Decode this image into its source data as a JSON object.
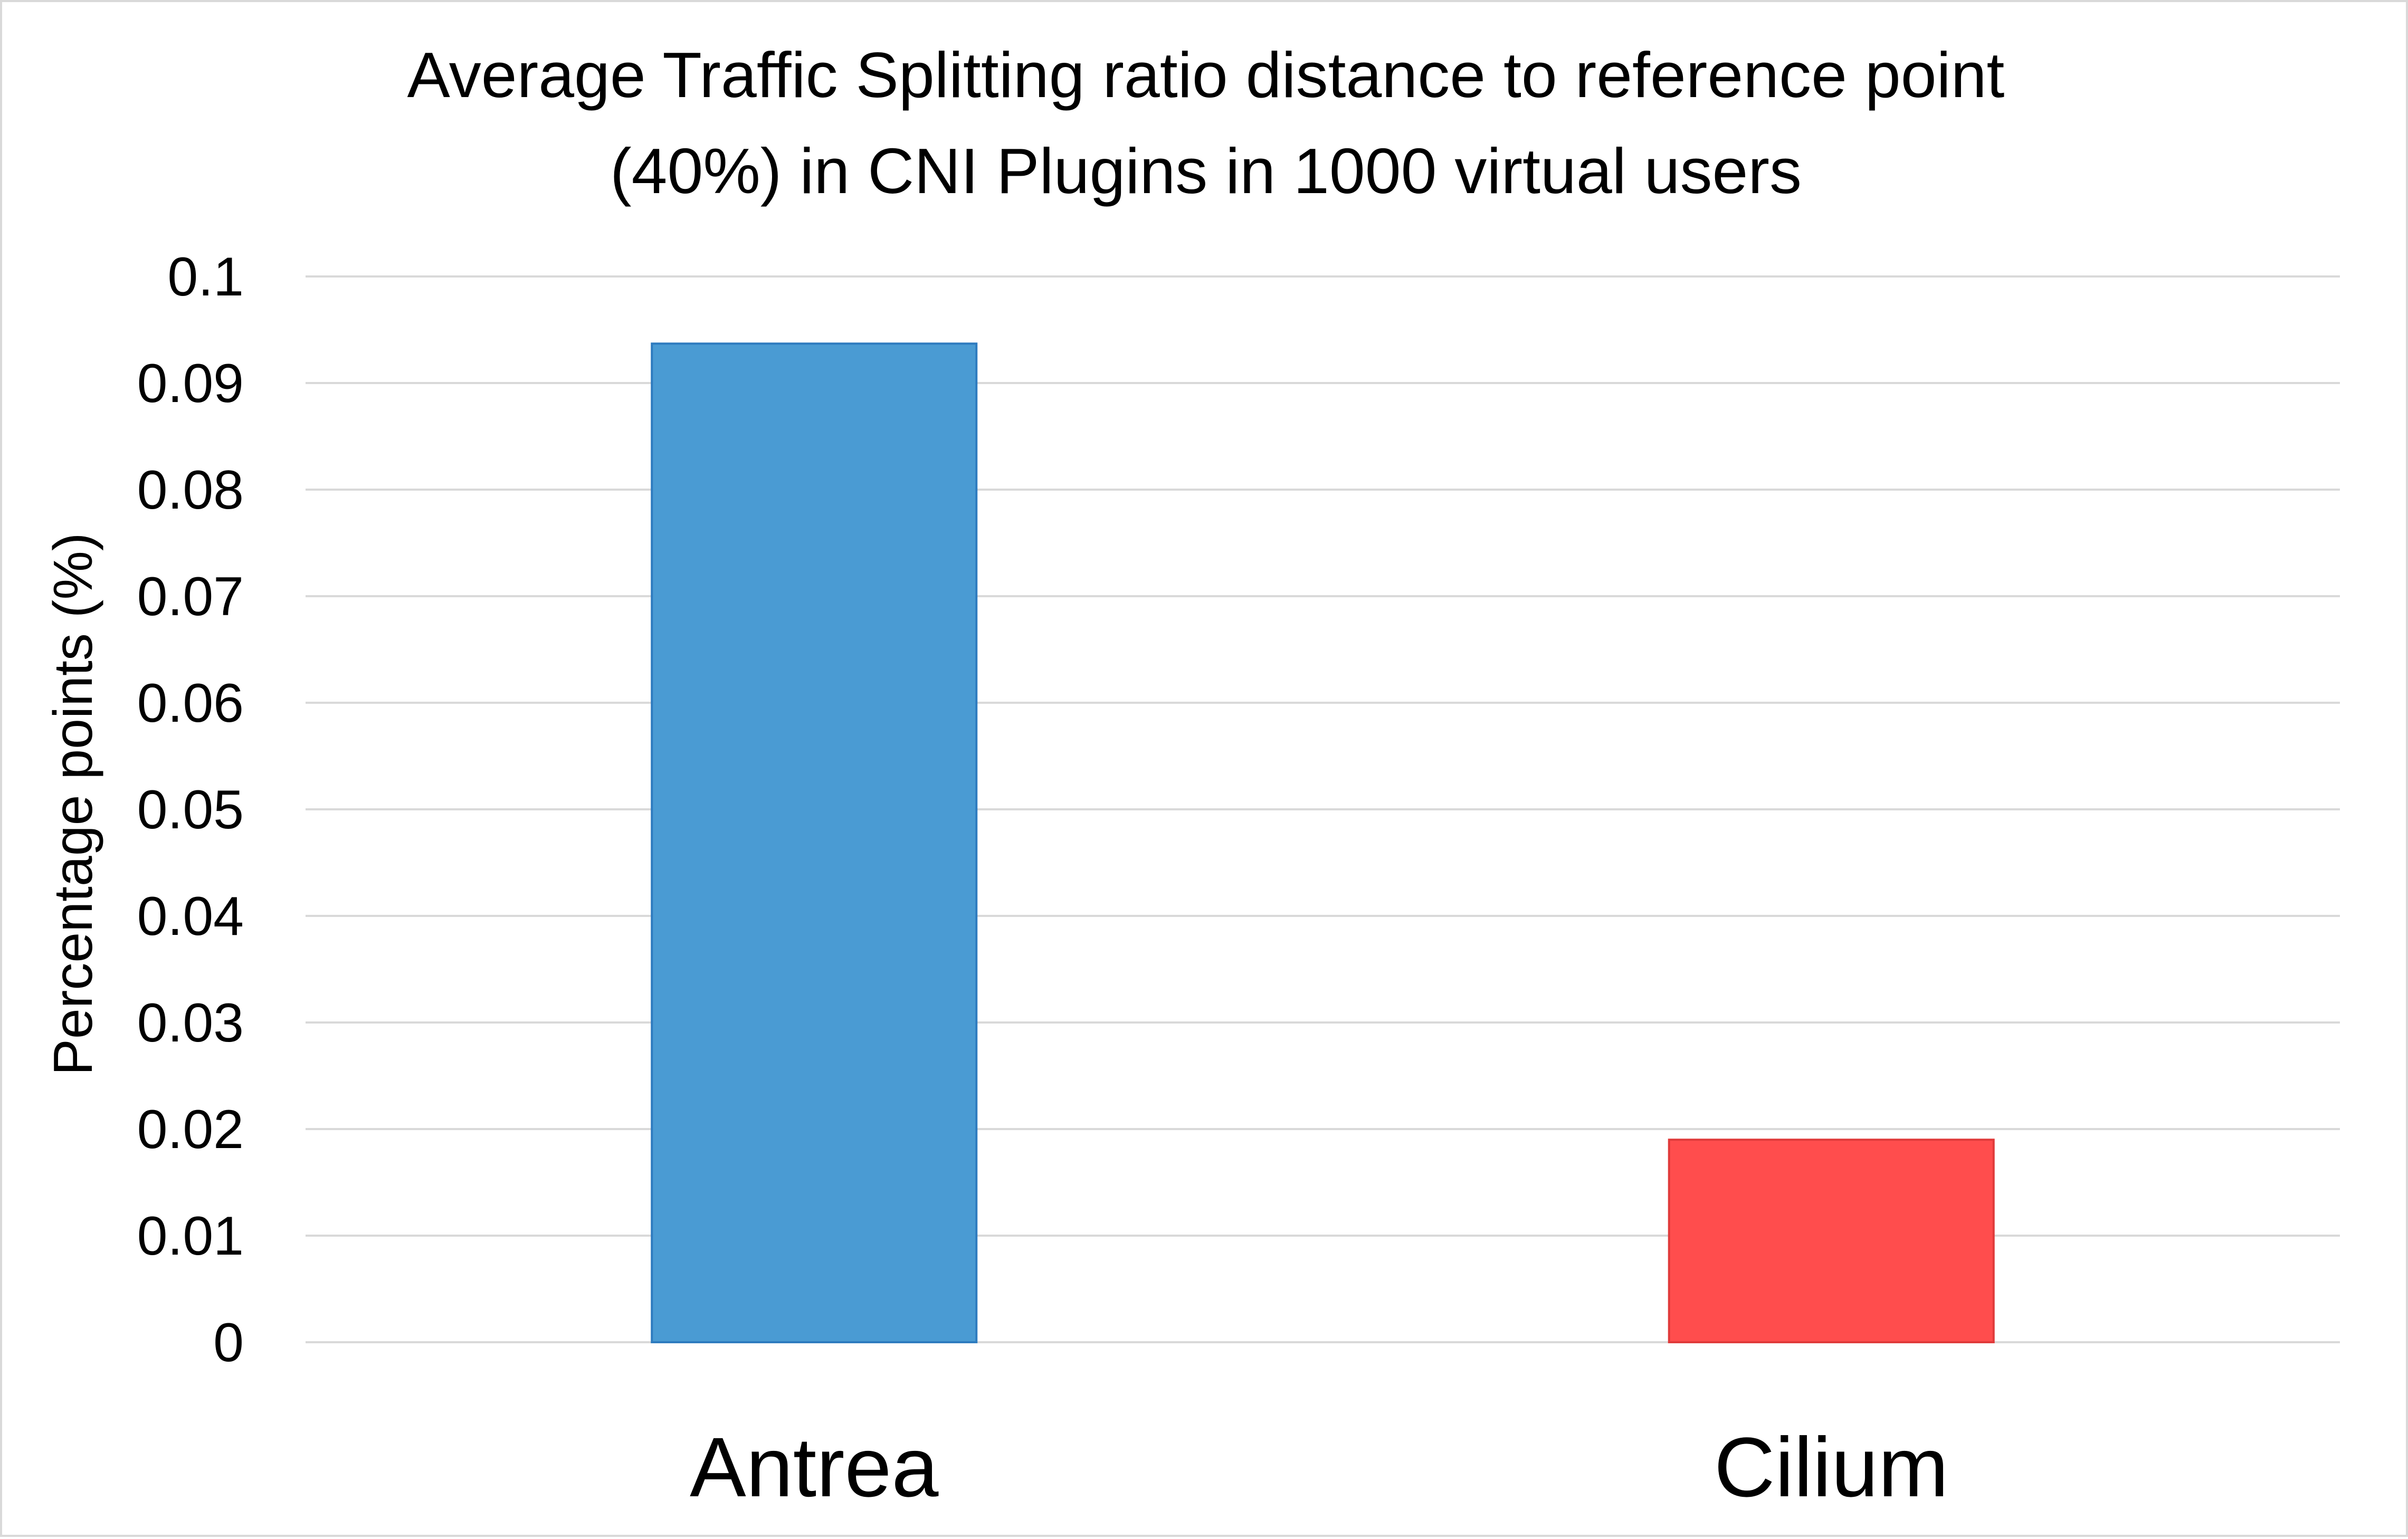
{
  "chart_data": {
    "type": "bar",
    "title_lines": [
      "Average Traffic Splitting ratio distance to reference point",
      "(40%) in CNI Plugins in 1000 virtual users"
    ],
    "xlabel": "",
    "ylabel": "Percentage points (%)",
    "ylim": [
      0,
      0.1
    ],
    "y_ticks": [
      "0",
      "0.01",
      "0.02",
      "0.03",
      "0.04",
      "0.05",
      "0.06",
      "0.07",
      "0.08",
      "0.09",
      "0.1"
    ],
    "y_tick_values": [
      0,
      0.01,
      0.02,
      0.03,
      0.04,
      0.05,
      0.06,
      0.07,
      0.08,
      0.09,
      0.1
    ],
    "grid": true,
    "legend": "none",
    "categories": [
      "Antrea",
      "Cilium"
    ],
    "values": [
      0.0937,
      0.019
    ],
    "colors": [
      "#4a9bd3",
      "#ff4d4d"
    ],
    "border_colors": [
      "#2e7bbf",
      "#e03a3a"
    ]
  }
}
